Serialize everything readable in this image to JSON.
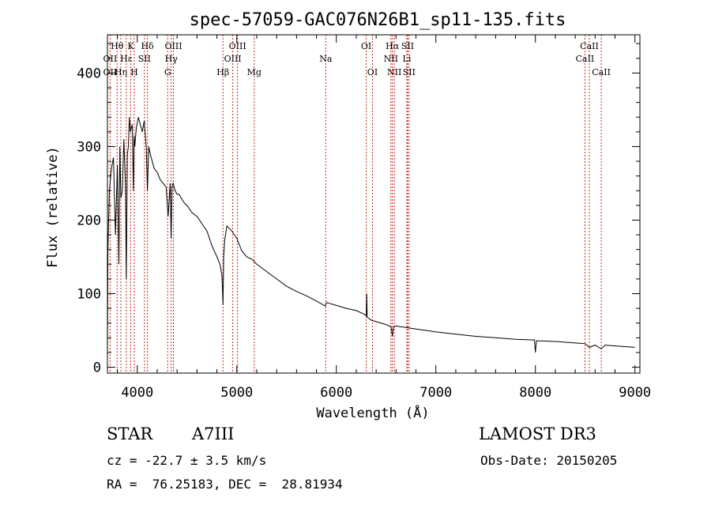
{
  "chart_data": {
    "type": "line",
    "title": "spec-57059-GAC076N26B1_sp11-135.fits",
    "xlabel": "Wavelength (Å)",
    "ylabel": "Flux (relative)",
    "xlim": [
      3700,
      9050
    ],
    "ylim": [
      -8,
      452
    ],
    "xticks": [
      4000,
      5000,
      6000,
      7000,
      8000,
      9000
    ],
    "xtick_labels": [
      "4000",
      "5000",
      "6000",
      "7000",
      "8000",
      "9000"
    ],
    "yticks": [
      0,
      100,
      200,
      300,
      400
    ],
    "ytick_labels": [
      "0",
      "100",
      "200",
      "300",
      "400"
    ],
    "grid": false,
    "series": [
      {
        "name": "spectrum",
        "color": "#000000",
        "x": [
          3700,
          3705,
          3720,
          3740,
          3760,
          3780,
          3800,
          3815,
          3825,
          3835,
          3850,
          3865,
          3880,
          3890,
          3900,
          3910,
          3920,
          3930,
          3950,
          3960,
          3968,
          3975,
          3990,
          4010,
          4030,
          4050,
          4070,
          4090,
          4102,
          4115,
          4130,
          4150,
          4170,
          4200,
          4230,
          4260,
          4290,
          4310,
          4330,
          4340,
          4350,
          4360,
          4380,
          4400,
          4420,
          4450,
          4480,
          4500,
          4550,
          4600,
          4650,
          4700,
          4750,
          4800,
          4830,
          4850,
          4855,
          4861,
          4868,
          4880,
          4900,
          4950,
          5000,
          5050,
          5100,
          5150,
          5200,
          5300,
          5400,
          5500,
          5600,
          5700,
          5800,
          5890,
          5900,
          6000,
          6100,
          6200,
          6280,
          6300,
          6305,
          6310,
          6350,
          6400,
          6500,
          6550,
          6563,
          6575,
          6600,
          6700,
          6800,
          6900,
          7000,
          7200,
          7400,
          7600,
          7800,
          7990,
          8000,
          8010,
          8200,
          8400,
          8500,
          8542,
          8600,
          8662,
          8700,
          8800,
          8900,
          9000
        ],
        "y": [
          10,
          160,
          240,
          270,
          285,
          180,
          275,
          140,
          300,
          230,
          240,
          310,
          250,
          120,
          290,
          300,
          340,
          320,
          330,
          240,
          315,
          300,
          325,
          340,
          330,
          320,
          335,
          300,
          240,
          300,
          290,
          280,
          270,
          265,
          255,
          250,
          245,
          205,
          250,
          175,
          245,
          250,
          240,
          235,
          235,
          228,
          222,
          220,
          210,
          205,
          195,
          185,
          165,
          150,
          140,
          125,
          110,
          85,
          150,
          175,
          192,
          185,
          175,
          158,
          150,
          147,
          140,
          130,
          120,
          110,
          103,
          97,
          90,
          83,
          88,
          84,
          80,
          77,
          72,
          70,
          100,
          68,
          64,
          62,
          58,
          55,
          42,
          55,
          56,
          54,
          52,
          50,
          48,
          45,
          42,
          40,
          38,
          37,
          20,
          36,
          35,
          33,
          32,
          27,
          30,
          25,
          30,
          29,
          28,
          27
        ]
      }
    ],
    "lines": [
      {
        "label": "Hθ",
        "x": 3797,
        "row": 1
      },
      {
        "label": "OII",
        "x": 3727,
        "row": 2
      },
      {
        "label": "OII",
        "x": 3727,
        "row": 3
      },
      {
        "label": "Hη",
        "x": 3835,
        "row": 3
      },
      {
        "label": "K",
        "x": 3934,
        "row": 1
      },
      {
        "label": "Hε",
        "x": 3889,
        "row": 2
      },
      {
        "label": "H",
        "x": 3969,
        "row": 3
      },
      {
        "label": "Hδ",
        "x": 4102,
        "row": 1
      },
      {
        "label": "SII",
        "x": 4072,
        "row": 2
      },
      {
        "label": "OIII",
        "x": 4363,
        "row": 1
      },
      {
        "label": "Hγ",
        "x": 4341,
        "row": 2
      },
      {
        "label": "G",
        "x": 4305,
        "row": 3
      },
      {
        "label": "OIII",
        "x": 5007,
        "row": 1
      },
      {
        "label": "OIII",
        "x": 4959,
        "row": 2
      },
      {
        "label": "Hβ",
        "x": 4861,
        "row": 3
      },
      {
        "label": "Mg",
        "x": 5175,
        "row": 3
      },
      {
        "label": "Na",
        "x": 5894,
        "row": 2
      },
      {
        "label": "OI",
        "x": 6300,
        "row": 1
      },
      {
        "label": "OI",
        "x": 6363,
        "row": 3
      },
      {
        "label": "Hα",
        "x": 6563,
        "row": 1
      },
      {
        "label": "NII",
        "x": 6548,
        "row": 2
      },
      {
        "label": "NII",
        "x": 6583,
        "row": 3
      },
      {
        "label": "SII",
        "x": 6716,
        "row": 1
      },
      {
        "label": "Li",
        "x": 6708,
        "row": 2
      },
      {
        "label": "SII",
        "x": 6731,
        "row": 3
      },
      {
        "label": "CaII",
        "x": 8542,
        "row": 1
      },
      {
        "label": "CaII",
        "x": 8498,
        "row": 2
      },
      {
        "label": "CaII",
        "x": 8662,
        "row": 3
      }
    ]
  },
  "footer": {
    "object_class": "STAR",
    "subclass": "A7III",
    "survey": "LAMOST DR3",
    "cz": "cz = -22.7 ± 3.5 km/s",
    "obs_date": "Obs-Date: 20150205",
    "coords": "RA =  76.25183, DEC =  28.81934"
  },
  "colors": {
    "spectrum": "#000000",
    "line_marker": "#c8281e",
    "axes": "#000000"
  }
}
